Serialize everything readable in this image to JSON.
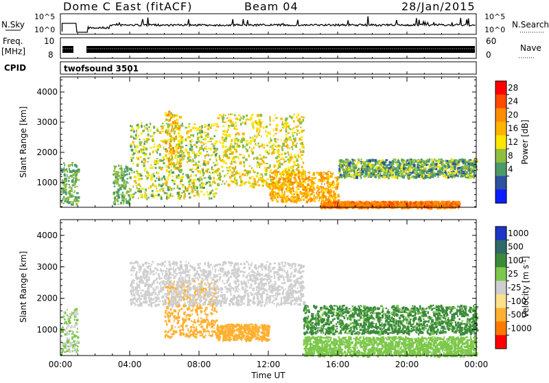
{
  "header": {
    "station": "Dome C East (fitACF)",
    "beam": "Beam 04",
    "date": "28/Jan/2015"
  },
  "strip_panels": {
    "noise_label": "N.Sky",
    "noise_ticks": [
      "10^5",
      "10^0"
    ],
    "noise_right_label": "N.Search",
    "noise_right_ticks": [
      "10^5",
      "10^0"
    ],
    "freq_label_1": "Freq.",
    "freq_label_2": "[MHz]",
    "freq_ticks": [
      "10",
      "8"
    ],
    "nave_label": "Nave",
    "nave_ticks": [
      "60",
      "0"
    ],
    "cpid_label": "CPID",
    "cpid_value": "twofsound 3501"
  },
  "x_axis": {
    "label": "Time UT",
    "ticks": [
      "00:00",
      "04:00",
      "08:00",
      "12:00",
      "16:00",
      "20:00",
      "00:00"
    ]
  },
  "y_axis": {
    "label": "Slant Range [km]",
    "ticks": [
      "1000",
      "2000",
      "3000",
      "4000"
    ]
  },
  "power_colorbar": {
    "label": "Power [dB]",
    "ticks": [
      "28",
      "24",
      "20",
      "16",
      "12",
      "8",
      "4"
    ],
    "colors": [
      "#ff0000",
      "#ff4a00",
      "#ff8c00",
      "#ffb400",
      "#ffe600",
      "#8fbf3f",
      "#4a9a6a",
      "#2c52a0",
      "#0a1eff"
    ]
  },
  "velocity_colorbar": {
    "label": "Velocity [m s",
    "label_sup": "-1",
    "label_end": "]",
    "ticks": [
      "1000",
      "500",
      "100",
      "25",
      "-25",
      "-100",
      "-500",
      "-1000"
    ],
    "colors": [
      "#1c36c6",
      "#2e6a6a",
      "#3a8a3a",
      "#7cc84a",
      "#cfcfcf",
      "#ffe08a",
      "#ffb030",
      "#ff7a00",
      "#ff0000"
    ]
  },
  "chart_data": [
    {
      "type": "heatmap",
      "title": "Power",
      "xlabel": "Time UT",
      "ylabel": "Slant Range [km]",
      "xlim": [
        "00:00",
        "24:00"
      ],
      "ylim": [
        180,
        4500
      ],
      "colorbar": "Power [dB]",
      "colorbar_ticks": [
        4,
        8,
        12,
        16,
        20,
        24,
        28
      ],
      "features": [
        {
          "time": [
            "00:00",
            "01:00"
          ],
          "range_km": [
            300,
            1700
          ],
          "power_db": [
            8,
            16
          ]
        },
        {
          "time": [
            "03:00",
            "04:00"
          ],
          "range_km": [
            300,
            1600
          ],
          "power_db": [
            8,
            16
          ]
        },
        {
          "time": [
            "04:00",
            "09:00"
          ],
          "range_km": [
            500,
            3000
          ],
          "power_db": [
            10,
            22
          ]
        },
        {
          "time": [
            "06:00",
            "07:00"
          ],
          "range_km": [
            1500,
            3400
          ],
          "power_db": [
            14,
            28
          ]
        },
        {
          "time": [
            "09:00",
            "14:00"
          ],
          "range_km": [
            900,
            3300
          ],
          "power_db": [
            12,
            24
          ]
        },
        {
          "time": [
            "12:00",
            "16:00"
          ],
          "range_km": [
            400,
            1400
          ],
          "power_db": [
            18,
            28
          ]
        },
        {
          "time": [
            "16:00",
            "24:00"
          ],
          "range_km": [
            1200,
            1800
          ],
          "power_db": [
            6,
            18
          ]
        },
        {
          "time": [
            "15:00",
            "23:00"
          ],
          "range_km": [
            200,
            400
          ],
          "power_db": [
            24,
            30
          ]
        }
      ]
    },
    {
      "type": "heatmap",
      "title": "Velocity",
      "xlabel": "Time UT",
      "ylabel": "Slant Range [km]",
      "xlim": [
        "00:00",
        "24:00"
      ],
      "ylim": [
        180,
        4500
      ],
      "colorbar": "Velocity [m s-1]",
      "colorbar_ticks": [
        -1000,
        -500,
        -100,
        -25,
        25,
        100,
        500,
        1000
      ],
      "features": [
        {
          "time": [
            "00:00",
            "01:00"
          ],
          "range_km": [
            300,
            1700
          ],
          "velocity": [
            -25,
            100
          ]
        },
        {
          "time": [
            "06:00",
            "09:00"
          ],
          "range_km": [
            800,
            2600
          ],
          "velocity": [
            -500,
            -100
          ]
        },
        {
          "time": [
            "09:00",
            "12:00"
          ],
          "range_km": [
            700,
            1200
          ],
          "velocity": [
            -500,
            -100
          ]
        },
        {
          "time": [
            "04:00",
            "14:00"
          ],
          "range_km": [
            1800,
            3200
          ],
          "velocity": [
            -25,
            25
          ]
        },
        {
          "time": [
            "14:00",
            "24:00"
          ],
          "range_km": [
            900,
            1800
          ],
          "velocity": [
            25,
            500
          ]
        },
        {
          "time": [
            "14:00",
            "24:00"
          ],
          "range_km": [
            200,
            800
          ],
          "velocity": [
            25,
            100
          ]
        }
      ]
    }
  ]
}
